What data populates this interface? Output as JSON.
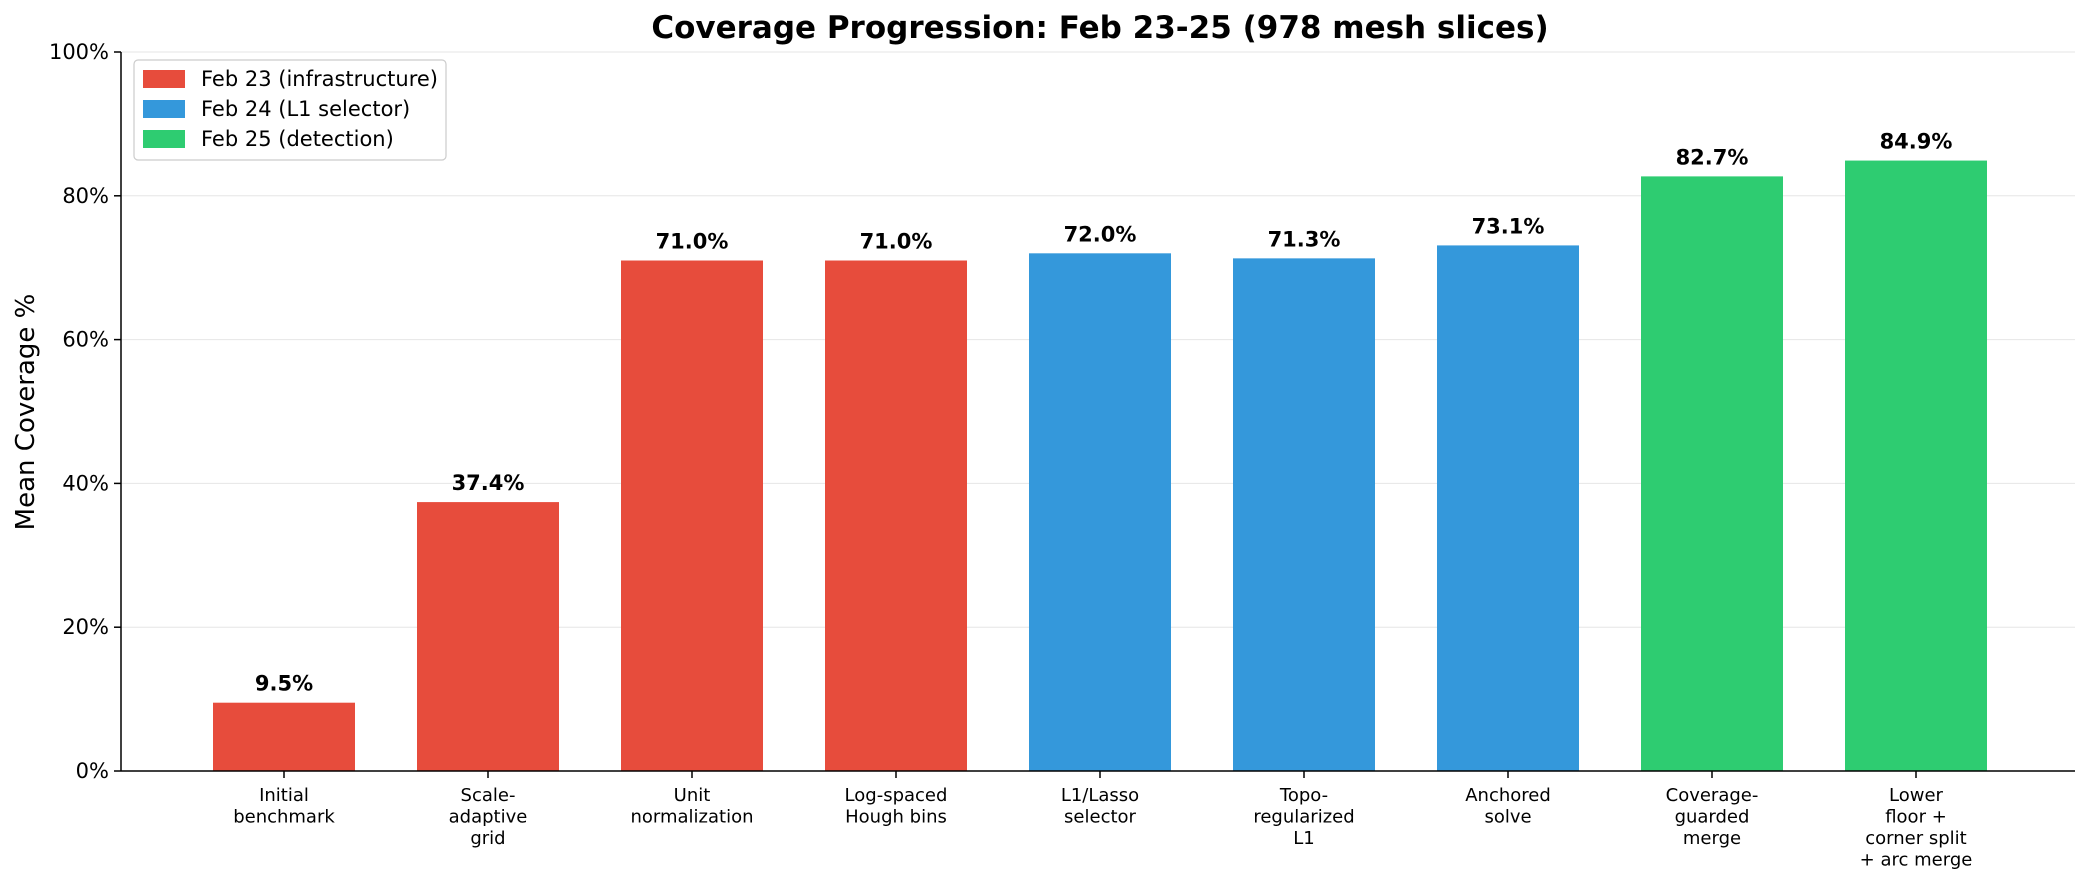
{
  "chart_data": {
    "type": "bar",
    "title": "Coverage Progression: Feb 23-25  (978 mesh slices)",
    "xlabel": "",
    "ylabel": "Mean Coverage %",
    "ylim": [
      0,
      100
    ],
    "yticks": [
      {
        "value": 0,
        "label": "0%"
      },
      {
        "value": 20,
        "label": "20%"
      },
      {
        "value": 40,
        "label": "40%"
      },
      {
        "value": 60,
        "label": "60%"
      },
      {
        "value": 80,
        "label": "80%"
      },
      {
        "value": 100,
        "label": "100%"
      }
    ],
    "grid": "horizontal",
    "legend_position": "top-left",
    "series": [
      {
        "name": "Feb 23 (infrastructure)",
        "color": "#e74c3c"
      },
      {
        "name": "Feb 24 (L1 selector)",
        "color": "#3498db"
      },
      {
        "name": "Feb 25 (detection)",
        "color": "#2ecc71"
      }
    ],
    "bars": [
      {
        "category": [
          "Initial",
          "benchmark"
        ],
        "value": 9.5,
        "label": "9.5%",
        "series": 0
      },
      {
        "category": [
          "Scale-",
          "adaptive",
          "grid"
        ],
        "value": 37.4,
        "label": "37.4%",
        "series": 0
      },
      {
        "category": [
          "Unit",
          "normalization"
        ],
        "value": 71.0,
        "label": "71.0%",
        "series": 0
      },
      {
        "category": [
          "Log-spaced",
          "Hough bins"
        ],
        "value": 71.0,
        "label": "71.0%",
        "series": 0
      },
      {
        "category": [
          "L1/Lasso",
          "selector"
        ],
        "value": 72.0,
        "label": "72.0%",
        "series": 1
      },
      {
        "category": [
          "Topo-",
          "regularized",
          "L1"
        ],
        "value": 71.3,
        "label": "71.3%",
        "series": 1
      },
      {
        "category": [
          "Anchored",
          "solve"
        ],
        "value": 73.1,
        "label": "73.1%",
        "series": 1
      },
      {
        "category": [
          "Coverage-",
          "guarded",
          "merge"
        ],
        "value": 82.7,
        "label": "82.7%",
        "series": 2
      },
      {
        "category": [
          "Lower",
          "floor +",
          "corner split",
          "+ arc merge"
        ],
        "value": 84.9,
        "label": "84.9%",
        "series": 2
      }
    ]
  }
}
